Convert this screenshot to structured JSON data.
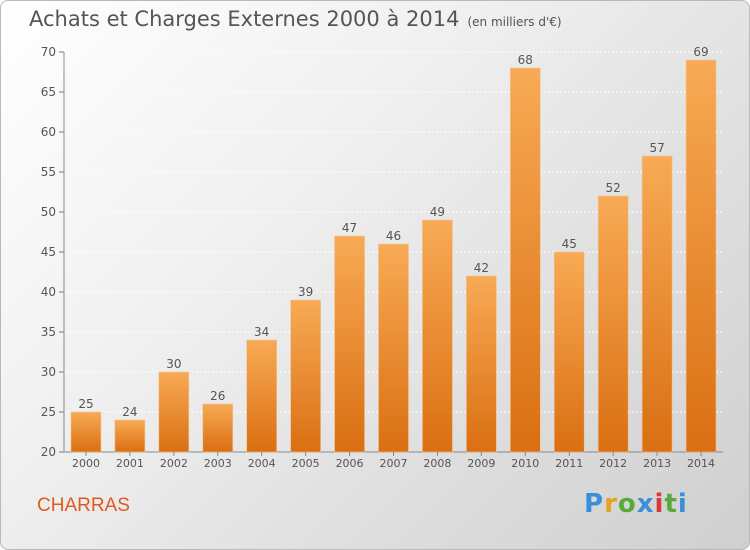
{
  "title": "Achats et Charges Externes 2000 à 2014",
  "unit": "(en milliers d'€)",
  "commune": "CHARRAS",
  "logo": {
    "letters": [
      "P",
      "r",
      "o",
      "x",
      "i",
      "t",
      "i"
    ],
    "colors": [
      "#3a8fd8",
      "#e8a020",
      "#5aaa3a",
      "#3a8fd8",
      "#d83a3a",
      "#5aaa3a",
      "#3a8fd8"
    ]
  },
  "colors": {
    "bar_top": "#f8aa55",
    "bar_bottom": "#da6f12",
    "text": "#555555",
    "commune": "#e2591f"
  },
  "chart_data": {
    "type": "bar",
    "categories": [
      "2000",
      "2001",
      "2002",
      "2003",
      "2004",
      "2005",
      "2006",
      "2007",
      "2008",
      "2009",
      "2010",
      "2011",
      "2012",
      "2013",
      "2014"
    ],
    "values": [
      25,
      24,
      30,
      26,
      34,
      39,
      47,
      46,
      49,
      42,
      68,
      45,
      52,
      57,
      69
    ],
    "ylim": [
      20,
      70
    ],
    "yticks": [
      20,
      25,
      30,
      35,
      40,
      45,
      50,
      55,
      60,
      65,
      70
    ],
    "grid": true,
    "title": "Achats et Charges Externes 2000 à 2014",
    "xlabel": "",
    "ylabel": ""
  }
}
